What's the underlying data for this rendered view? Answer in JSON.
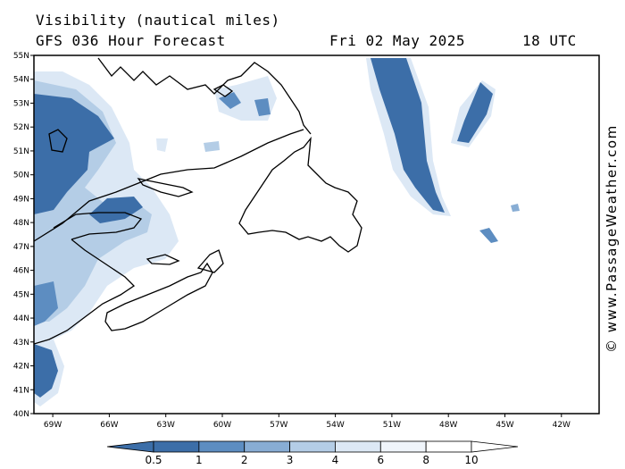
{
  "header": {
    "title_line1": "Visibility (nautical miles)",
    "title_line2": "GFS 036 Hour Forecast",
    "date": "Fri 02 May 2025",
    "time": "18 UTC"
  },
  "credit": "© www.PassageWeather.com",
  "map": {
    "lat_labels": [
      "55N",
      "54N",
      "53N",
      "52N",
      "51N",
      "50N",
      "49N",
      "48N",
      "47N",
      "46N",
      "45N",
      "44N",
      "43N",
      "42N",
      "41N",
      "40N"
    ],
    "lon_labels": [
      "69W",
      "66W",
      "63W",
      "60W",
      "57W",
      "54W",
      "51W",
      "48W",
      "45W",
      "42W"
    ],
    "lat_range": [
      40,
      55
    ],
    "lon_range": [
      -70,
      -40
    ]
  },
  "colorbar": {
    "labels": [
      "0.5",
      "1",
      "2",
      "3",
      "4",
      "6",
      "8",
      "10"
    ],
    "colors": [
      "#3c6ea8",
      "#3c6ea8",
      "#5d8dc1",
      "#88add4",
      "#b4cde6",
      "#dce8f5",
      "#f0f5fb",
      "#ffffff",
      "#ffffff"
    ]
  }
}
